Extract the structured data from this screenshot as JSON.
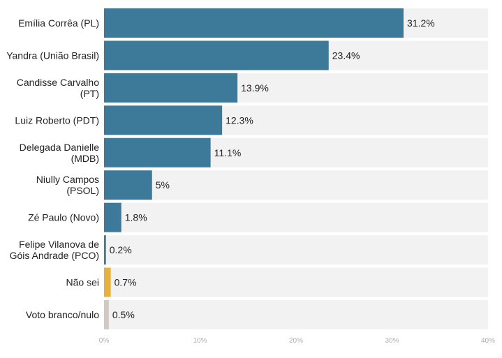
{
  "chart_data": {
    "type": "bar",
    "orientation": "horizontal",
    "categories": [
      "Emília Corrêa (PL)",
      "Yandra (União Brasil)",
      "Candisse Carvalho (PT)",
      "Luiz Roberto (PDT)",
      "Delegada Danielle (MDB)",
      "Niully Campos (PSOL)",
      "Zé Paulo (Novo)",
      "Felipe Vilanova de Góis Andrade (PCO)",
      "Não sei",
      "Voto branco/nulo"
    ],
    "label_lines": [
      [
        "Emília Corrêa (PL)"
      ],
      [
        "Yandra (União Brasil)"
      ],
      [
        "Candisse Carvalho",
        "(PT)"
      ],
      [
        "Luiz Roberto (PDT)"
      ],
      [
        "Delegada Danielle",
        "(MDB)"
      ],
      [
        "Niully Campos",
        "(PSOL)"
      ],
      [
        "Zé Paulo (Novo)"
      ],
      [
        "Felipe Vilanova de",
        "Góis Andrade (PCO)"
      ],
      [
        "Não sei"
      ],
      [
        "Voto branco/nulo"
      ]
    ],
    "values": [
      31.2,
      23.4,
      13.9,
      12.3,
      11.1,
      5,
      1.8,
      0.2,
      0.7,
      0.5
    ],
    "value_labels": [
      "31.2%",
      "23.4%",
      "13.9%",
      "12.3%",
      "11.1%",
      "5%",
      "1.8%",
      "0.2%",
      "0.7%",
      "0.5%"
    ],
    "bar_colors": [
      "#3d7a99",
      "#3d7a99",
      "#3d7a99",
      "#3d7a99",
      "#3d7a99",
      "#3d7a99",
      "#3d7a99",
      "#3d7a99",
      "#e8b13c",
      "#d4c8c2"
    ],
    "track_color": "#f2f2f2",
    "xlim": [
      0,
      40
    ],
    "x_ticks": [
      0,
      10,
      20,
      30,
      40
    ],
    "x_tick_labels": [
      "0%",
      "10%",
      "20%",
      "30%",
      "40%"
    ],
    "title": "",
    "xlabel": "",
    "ylabel": "",
    "grid": false,
    "legend": "none"
  }
}
